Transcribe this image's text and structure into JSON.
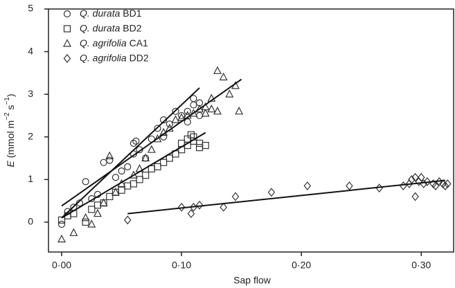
{
  "chart_data": {
    "type": "scatter",
    "xlabel": "Sap flow",
    "ylabel_parts": [
      "E",
      " (mmol m",
      "−2",
      " s",
      "−1",
      ")"
    ],
    "xlim": [
      -0.011,
      0.327
    ],
    "ylim": [
      -0.7,
      5
    ],
    "xticks": [
      {
        "value": 0,
        "label": "0·00"
      },
      {
        "value": 0.1,
        "label": "0·10"
      },
      {
        "value": 0.2,
        "label": "0·20"
      },
      {
        "value": 0.3,
        "label": "0·30"
      }
    ],
    "yticks": [
      0,
      1,
      2,
      3,
      4,
      5
    ],
    "legend": "top-left",
    "series": [
      {
        "name": "Q. durata BD1",
        "marker": "circle",
        "color": "#333333",
        "x": [
          0.0,
          0.005,
          0.01,
          0.015,
          0.02,
          0.025,
          0.03,
          0.035,
          0.04,
          0.045,
          0.05,
          0.055,
          0.06,
          0.06,
          0.062,
          0.065,
          0.07,
          0.075,
          0.08,
          0.085,
          0.085,
          0.09,
          0.095,
          0.1,
          0.105,
          0.11,
          0.115,
          0.11,
          0.105,
          0.115
        ],
        "values": [
          -0.05,
          0.25,
          0.35,
          0.45,
          0.95,
          0.55,
          0.65,
          1.4,
          1.45,
          1.05,
          1.2,
          1.3,
          1.6,
          1.85,
          1.9,
          1.7,
          1.5,
          1.95,
          2.2,
          2.4,
          2.0,
          2.3,
          2.6,
          2.5,
          2.6,
          2.75,
          2.8,
          2.9,
          2.35,
          2.5
        ]
      },
      {
        "name": "Q. durata BD2",
        "marker": "square",
        "color": "#333333",
        "x": [
          0.0,
          0.005,
          0.01,
          0.02,
          0.025,
          0.03,
          0.035,
          0.04,
          0.045,
          0.05,
          0.055,
          0.06,
          0.065,
          0.07,
          0.075,
          0.08,
          0.085,
          0.09,
          0.095,
          0.1,
          0.105,
          0.11,
          0.115,
          0.105,
          0.11,
          0.115,
          0.12,
          0.1,
          0.108
        ],
        "values": [
          0.05,
          0.15,
          0.2,
          0.0,
          0.3,
          0.4,
          0.45,
          0.6,
          0.7,
          0.75,
          0.85,
          0.9,
          1.0,
          1.1,
          1.25,
          1.3,
          1.4,
          1.5,
          1.6,
          1.7,
          1.8,
          1.9,
          1.85,
          1.95,
          2.0,
          1.75,
          1.8,
          1.85,
          2.05
        ]
      },
      {
        "name": "Q. agrifolia CA1",
        "marker": "triangle",
        "color": "#333333",
        "x": [
          0.0,
          0.01,
          0.02,
          0.025,
          0.03,
          0.035,
          0.04,
          0.045,
          0.05,
          0.06,
          0.065,
          0.07,
          0.075,
          0.08,
          0.085,
          0.09,
          0.095,
          0.1,
          0.105,
          0.11,
          0.115,
          0.12,
          0.125,
          0.13,
          0.13,
          0.135,
          0.14,
          0.145,
          0.148,
          0.125,
          0.12
        ],
        "values": [
          -0.4,
          -0.25,
          0.1,
          -0.05,
          0.2,
          0.45,
          1.55,
          0.7,
          0.9,
          1.1,
          1.25,
          1.5,
          1.7,
          1.95,
          2.1,
          2.2,
          2.4,
          2.45,
          2.5,
          2.55,
          2.65,
          2.7,
          2.65,
          2.6,
          3.55,
          3.4,
          3.0,
          3.2,
          2.6,
          2.9,
          2.55
        ]
      },
      {
        "name": "Q. agrifolia DD2",
        "marker": "diamond",
        "color": "#333333",
        "x": [
          0.055,
          0.1,
          0.108,
          0.11,
          0.115,
          0.135,
          0.145,
          0.175,
          0.205,
          0.24,
          0.265,
          0.285,
          0.29,
          0.292,
          0.295,
          0.298,
          0.3,
          0.295,
          0.302,
          0.305,
          0.31,
          0.312,
          0.315,
          0.318,
          0.32,
          0.322
        ],
        "values": [
          0.05,
          0.35,
          0.2,
          0.35,
          0.4,
          0.35,
          0.6,
          0.7,
          0.85,
          0.85,
          0.8,
          0.85,
          0.9,
          1.0,
          1.05,
          0.95,
          1.05,
          0.6,
          0.9,
          0.95,
          0.9,
          0.85,
          0.95,
          0.9,
          0.85,
          0.9
        ]
      }
    ],
    "trend_lines": [
      {
        "x": [
          0.0,
          0.115
        ],
        "y": [
          0.1,
          3.15
        ]
      },
      {
        "x": [
          0.0,
          0.12
        ],
        "y": [
          0.1,
          2.1
        ]
      },
      {
        "x": [
          0.0,
          0.15
        ],
        "y": [
          0.38,
          3.35
        ]
      },
      {
        "x": [
          0.055,
          0.32
        ],
        "y": [
          0.2,
          0.98
        ]
      }
    ]
  }
}
